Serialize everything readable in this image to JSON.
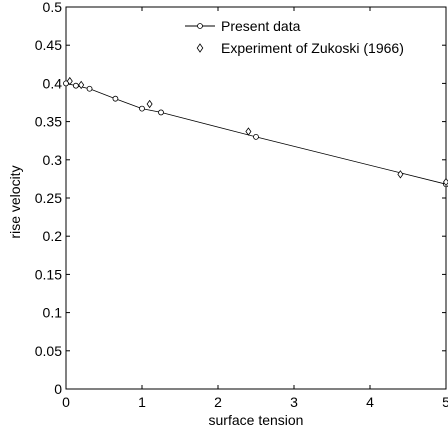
{
  "chart_data": {
    "type": "line",
    "title": "",
    "xlabel": "surface tension",
    "ylabel": "rise velocity",
    "xlim": [
      0,
      5
    ],
    "ylim": [
      0,
      0.5
    ],
    "xticks": [
      0,
      1,
      2,
      3,
      4,
      5
    ],
    "xtick_labels": [
      "0",
      "1",
      "2",
      "3",
      "4",
      "5"
    ],
    "yticks": [
      0,
      0.05,
      0.1,
      0.15,
      0.2,
      0.25,
      0.3,
      0.35,
      0.4,
      0.45,
      0.5
    ],
    "ytick_labels": [
      "0",
      "0.05",
      "0.1",
      "0.15",
      "0.2",
      "0.25",
      "0.3",
      "0.35",
      "0.4",
      "0.45",
      "0.5"
    ],
    "grid": false,
    "legend_position": "top-right",
    "series": [
      {
        "name": "Present data",
        "style": "line-with-circle-markers",
        "color": "#000000",
        "points": [
          {
            "x": 0.0,
            "y": 0.4
          },
          {
            "x": 0.13,
            "y": 0.397
          },
          {
            "x": 0.31,
            "y": 0.393
          },
          {
            "x": 0.65,
            "y": 0.38
          },
          {
            "x": 1.0,
            "y": 0.367
          },
          {
            "x": 1.25,
            "y": 0.362
          },
          {
            "x": 2.5,
            "y": 0.33
          },
          {
            "x": 5.0,
            "y": 0.268
          }
        ]
      },
      {
        "name": "Experiment of Zukoski (1966)",
        "style": "diamond-markers",
        "color": "#000000",
        "points": [
          {
            "x": 0.05,
            "y": 0.403
          },
          {
            "x": 0.2,
            "y": 0.398
          },
          {
            "x": 1.1,
            "y": 0.373
          },
          {
            "x": 2.4,
            "y": 0.337
          },
          {
            "x": 4.4,
            "y": 0.281
          },
          {
            "x": 5.0,
            "y": 0.271
          }
        ]
      }
    ]
  }
}
